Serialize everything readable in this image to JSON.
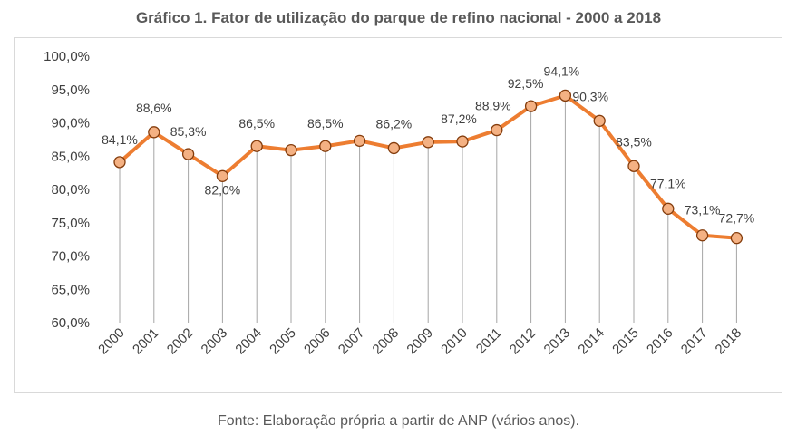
{
  "title": "Gráfico 1. Fator de utilização do parque de refino nacional - 2000 a 2018",
  "source": "Fonte: Elaboração própria a partir de ANP (vários anos).",
  "colors": {
    "line": "#ed7d31",
    "marker_fill": "#f4b183",
    "marker_stroke": "#843c0c",
    "drop_lines": "#a6a6a6",
    "text": "#404040"
  },
  "chart_data": {
    "type": "line",
    "title": "Gráfico 1. Fator de utilização do parque de refino nacional - 2000 a 2018",
    "xlabel": "",
    "ylabel": "",
    "categories": [
      "2000",
      "2001",
      "2002",
      "2003",
      "2004",
      "2005",
      "2006",
      "2007",
      "2008",
      "2009",
      "2010",
      "2011",
      "2012",
      "2013",
      "2014",
      "2015",
      "2016",
      "2017",
      "2018"
    ],
    "series": [
      {
        "values": [
          84.1,
          88.6,
          85.3,
          82.0,
          86.5,
          85.9,
          86.5,
          87.3,
          86.2,
          87.1,
          87.2,
          88.9,
          92.5,
          94.1,
          90.3,
          83.5,
          77.1,
          73.1,
          72.7
        ]
      }
    ],
    "data_labels": [
      "84,1%",
      "88,6%",
      "85,3%",
      "82,0%",
      "86,5%",
      "",
      "86,5%",
      "",
      "86,2%",
      "",
      "87,2%",
      "88,9%",
      "92,5%",
      "94,1%",
      "90,3%",
      "83,5%",
      "77,1%",
      "73,1%",
      "72,7%"
    ],
    "ylim": [
      60,
      100
    ],
    "yticks": [
      60,
      65,
      70,
      75,
      80,
      85,
      90,
      95,
      100
    ],
    "ytick_labels": [
      "60,0%",
      "65,0%",
      "70,0%",
      "75,0%",
      "80,0%",
      "85,0%",
      "90,0%",
      "95,0%",
      "100,0%"
    ],
    "grid": false,
    "drop_lines": true,
    "legend": "none"
  }
}
